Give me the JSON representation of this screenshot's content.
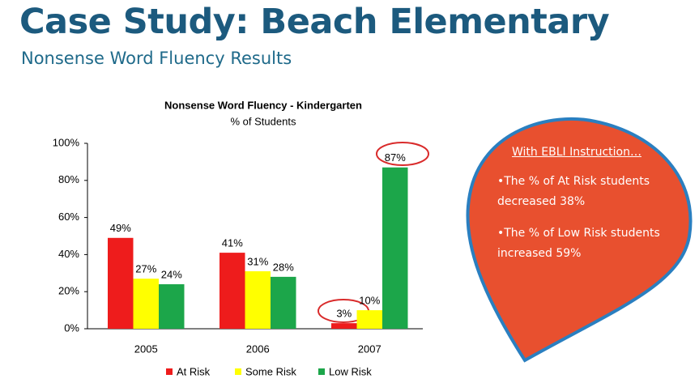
{
  "slide": {
    "title": "Case Study: Beach Elementary",
    "subtitle": "Nonsense Word Fluency Results"
  },
  "chart_data": {
    "type": "bar",
    "title": "Nonsense Word Fluency - Kindergarten",
    "subtitle": "% of Students",
    "categories": [
      "2005",
      "2006",
      "2007"
    ],
    "series": [
      {
        "name": "At Risk",
        "color": "#ee1c1c",
        "values": [
          49,
          41,
          3
        ],
        "value_labels": [
          "49%",
          "41%",
          "3%"
        ]
      },
      {
        "name": "Some Risk",
        "color": "#ffff00",
        "values": [
          27,
          31,
          10
        ],
        "value_labels": [
          "27%",
          "31%",
          "10%"
        ]
      },
      {
        "name": "Low Risk",
        "color": "#1ca64a",
        "values": [
          24,
          28,
          87
        ],
        "value_labels": [
          "24%",
          "28%",
          "87%"
        ]
      }
    ],
    "ylim": [
      0,
      100
    ],
    "yticks": [
      {
        "value": 0,
        "label": "0%"
      },
      {
        "value": 20,
        "label": "20%"
      },
      {
        "value": 40,
        "label": "40%"
      },
      {
        "value": 60,
        "label": "60%"
      },
      {
        "value": 80,
        "label": "80%"
      },
      {
        "value": 100,
        "label": "100%"
      }
    ],
    "grid": false,
    "legend": "bottom"
  },
  "callout": {
    "heading": "With EBLI Instruction…",
    "points": [
      "•The % of At Risk students decreased 38%",
      "•The % of Low Risk students increased 59%"
    ]
  }
}
